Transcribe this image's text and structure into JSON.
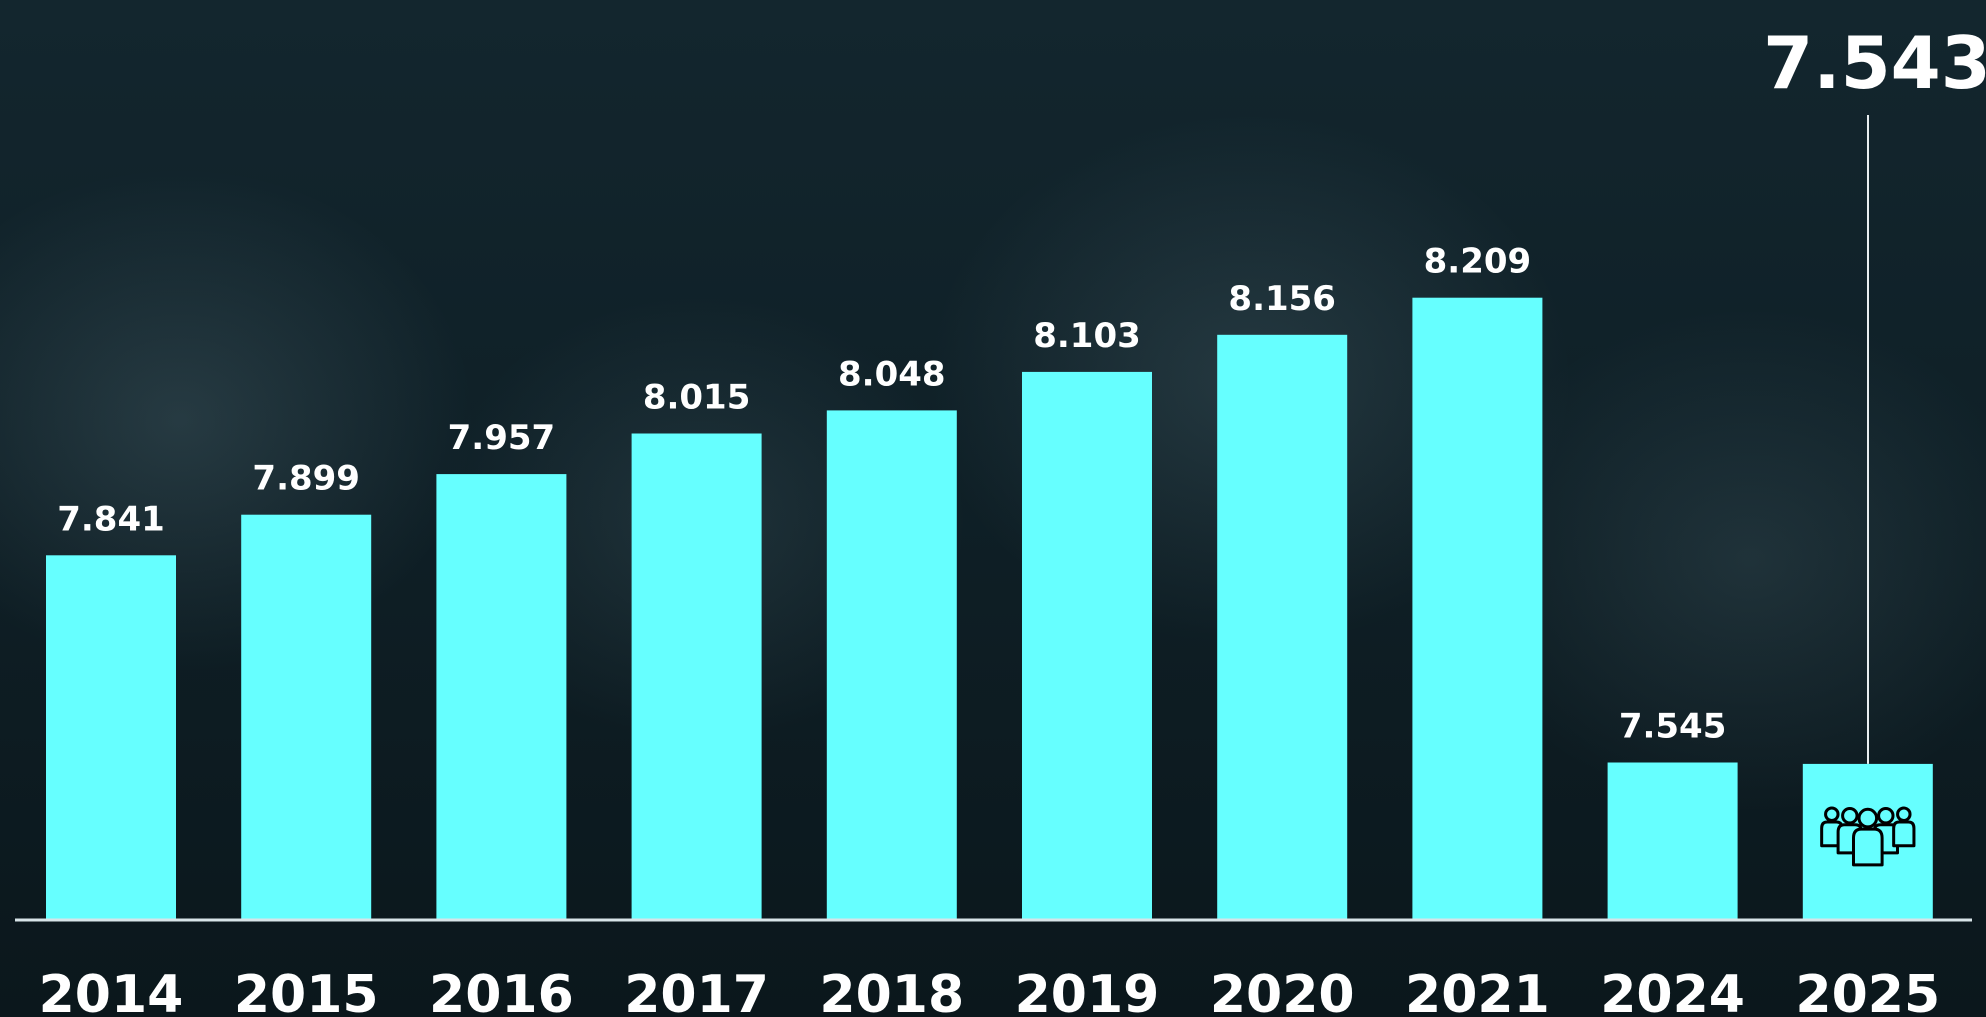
{
  "chart_data": {
    "type": "bar",
    "categories": [
      "2014",
      "2015",
      "2016",
      "2017",
      "2018",
      "2019",
      "2020",
      "2021",
      "2024",
      "2025"
    ],
    "values": [
      7.841,
      7.899,
      7.957,
      8.015,
      8.048,
      8.103,
      8.156,
      8.209,
      7.545,
      7.543
    ],
    "labels": [
      "7.841",
      "7.899",
      "7.957",
      "8.015",
      "8.048",
      "8.103",
      "8.156",
      "8.209",
      "7.545",
      "7.543"
    ],
    "highlight_index": 9,
    "title": "",
    "xlabel": "",
    "ylabel": "",
    "ylim": [
      0,
      8.3
    ],
    "grid": false,
    "bar_color": "#66ffff",
    "label_color": "#ffffff",
    "highlight_icon": "people-group-icon"
  }
}
